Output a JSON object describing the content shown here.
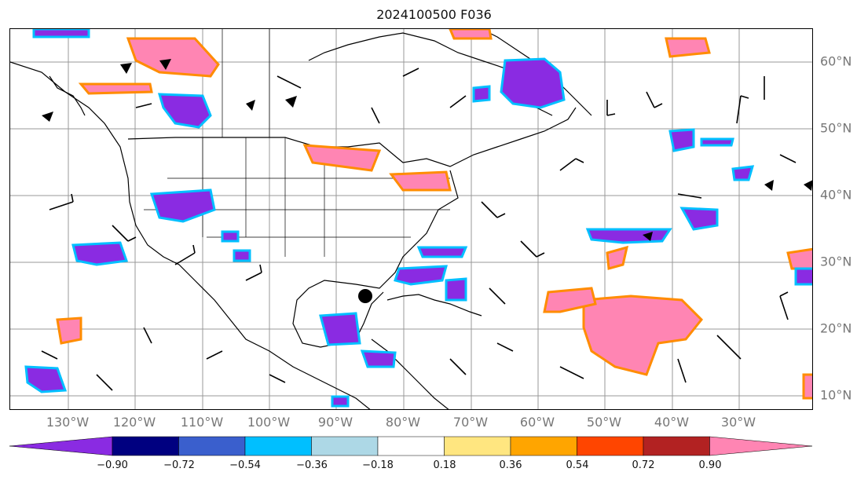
{
  "title": "2024100500 F036",
  "lon_labels": [
    "130°W",
    "120°W",
    "110°W",
    "100°W",
    "90°W",
    "80°W",
    "70°W",
    "60°W",
    "50°W",
    "40°W",
    "30°W"
  ],
  "lat_labels": [
    "60°N",
    "50°N",
    "40°N",
    "30°N",
    "20°N",
    "10°N"
  ],
  "colorbar": {
    "ticks": [
      "−0.90",
      "−0.72",
      "−0.54",
      "−0.36",
      "−0.18",
      "0.18",
      "0.36",
      "0.54",
      "0.72",
      "0.90"
    ],
    "colors": [
      "#8a2be2",
      "#000080",
      "#3a5fcd",
      "#00bfff",
      "#add8e6",
      "#ffffff",
      "#ffe680",
      "#ffa500",
      "#ff4500",
      "#b22222",
      "#ff85b3"
    ]
  },
  "colors": {
    "grid": "#999999",
    "coast": "#000000",
    "label": "#777777"
  }
}
